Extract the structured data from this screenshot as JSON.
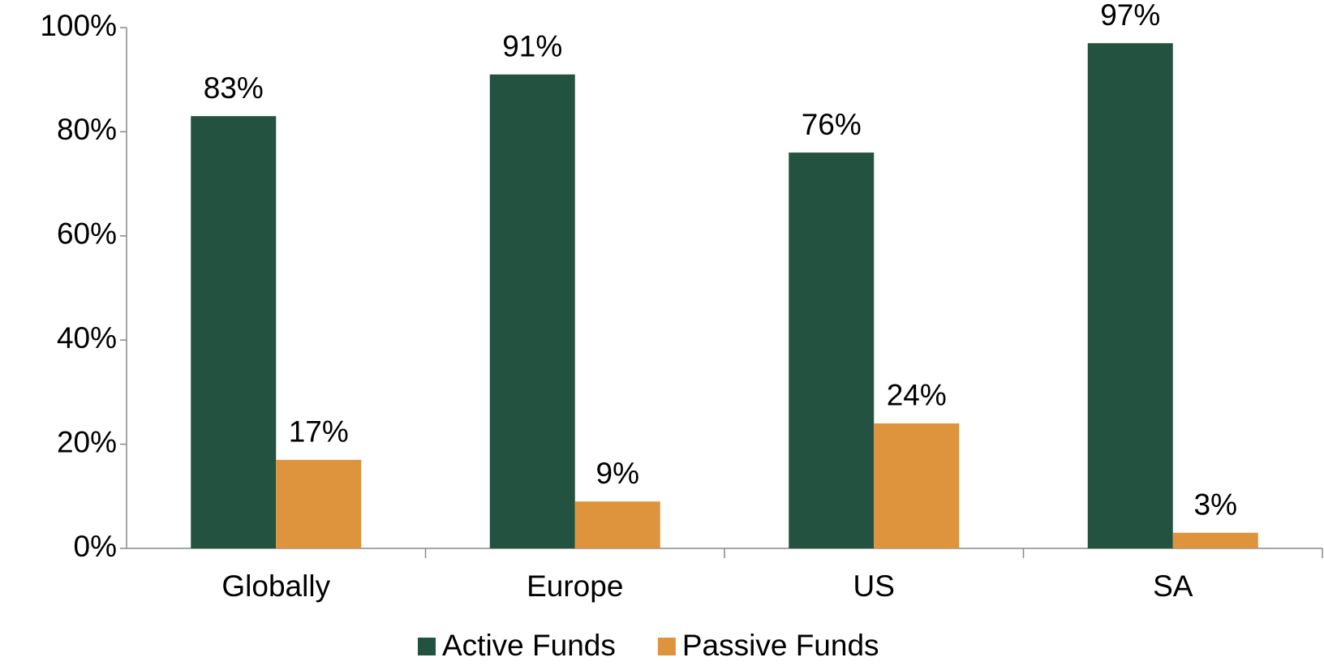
{
  "chart_data": {
    "type": "bar",
    "categories": [
      "Globally",
      "Europe",
      "US",
      "SA"
    ],
    "series": [
      {
        "name": "Active Funds",
        "color": "#235240",
        "values": [
          83,
          91,
          76,
          97
        ],
        "value_labels": [
          "83%",
          "91%",
          "76%",
          "97%"
        ]
      },
      {
        "name": "Passive Funds",
        "color": "#dd943c",
        "values": [
          17,
          9,
          24,
          3
        ],
        "value_labels": [
          "17%",
          "9%",
          "24%",
          "3%"
        ]
      }
    ],
    "ylim": [
      0,
      100
    ],
    "yticks": [
      {
        "value": 0,
        "label": "0%"
      },
      {
        "value": 20,
        "label": "20%"
      },
      {
        "value": 40,
        "label": "40%"
      },
      {
        "value": 60,
        "label": "60%"
      },
      {
        "value": 80,
        "label": "80%"
      },
      {
        "value": 100,
        "label": "100%"
      }
    ],
    "grid": false,
    "legend": "bottom"
  }
}
